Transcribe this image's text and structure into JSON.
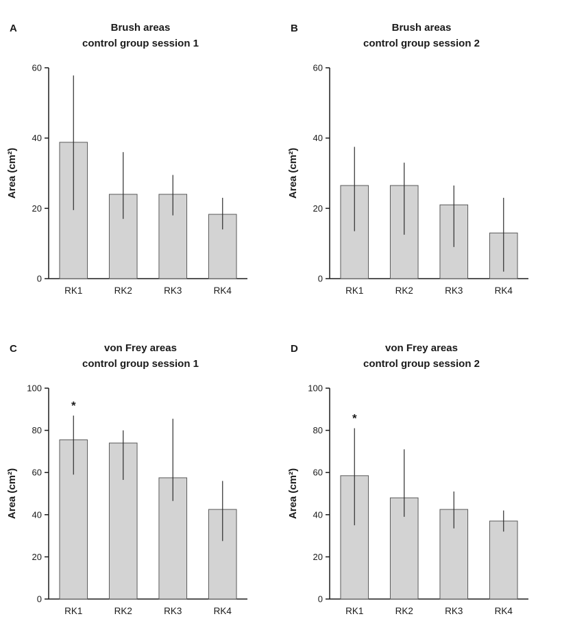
{
  "figure": {
    "background": "#ffffff",
    "bar_fill": "#d3d3d3",
    "bar_stroke": "#595959",
    "error_bar_color": "#2b2b2b",
    "axis_color": "#1a1a1a",
    "panels": [
      {
        "label": "A",
        "title_line1": "Brush areas",
        "title_line2": "control group session 1"
      },
      {
        "label": "B",
        "title_line1": "Brush areas",
        "title_line2": "control group session 2"
      },
      {
        "label": "C",
        "title_line1": "von Frey areas",
        "title_line2": "control group session 1"
      },
      {
        "label": "D",
        "title_line1": "von Frey areas",
        "title_line2": "control group session 2"
      }
    ]
  },
  "chart_data": [
    {
      "type": "bar",
      "panel": "A",
      "title": "Brush areas control group session 1",
      "categories": [
        "RK1",
        "RK2",
        "RK3",
        "RK4"
      ],
      "values": [
        38.8,
        24,
        24,
        18.3
      ],
      "error_low": [
        19.5,
        17,
        18,
        14
      ],
      "error_high": [
        57.8,
        36,
        29.5,
        23
      ],
      "xlabel": "",
      "ylabel": "Area (cm²)",
      "ylim": [
        0,
        60
      ],
      "yticks": [
        0,
        20,
        40,
        60
      ],
      "grid": false,
      "legend": "none",
      "annotations": []
    },
    {
      "type": "bar",
      "panel": "B",
      "title": "Brush areas control group session 2",
      "categories": [
        "RK1",
        "RK2",
        "RK3",
        "RK4"
      ],
      "values": [
        26.5,
        26.5,
        21,
        13
      ],
      "error_low": [
        13.5,
        12.5,
        9,
        2
      ],
      "error_high": [
        37.5,
        33,
        26.5,
        23
      ],
      "xlabel": "",
      "ylabel": "Area (cm²)",
      "ylim": [
        0,
        60
      ],
      "yticks": [
        0,
        20,
        40,
        60
      ],
      "grid": false,
      "legend": "none",
      "annotations": []
    },
    {
      "type": "bar",
      "panel": "C",
      "title": "von Frey areas control group session 1",
      "categories": [
        "RK1",
        "RK2",
        "RK3",
        "RK4"
      ],
      "values": [
        75.5,
        74,
        57.5,
        42.5
      ],
      "error_low": [
        59,
        56.5,
        46.5,
        27.5
      ],
      "error_high": [
        87,
        80,
        85.5,
        56
      ],
      "xlabel": "",
      "ylabel": "Area (cm²)",
      "ylim": [
        0,
        100
      ],
      "yticks": [
        0,
        20,
        40,
        60,
        80,
        100
      ],
      "grid": false,
      "legend": "none",
      "annotations": [
        {
          "category": "RK1",
          "text": "*"
        }
      ]
    },
    {
      "type": "bar",
      "panel": "D",
      "title": "von Frey areas control group session 2",
      "categories": [
        "RK1",
        "RK2",
        "RK3",
        "RK4"
      ],
      "values": [
        58.5,
        48,
        42.5,
        37
      ],
      "error_low": [
        35,
        39,
        33.5,
        32
      ],
      "error_high": [
        81,
        71,
        51,
        42
      ],
      "xlabel": "",
      "ylabel": "Area (cm²)",
      "ylim": [
        0,
        100
      ],
      "yticks": [
        0,
        20,
        40,
        60,
        80,
        100
      ],
      "grid": false,
      "legend": "none",
      "annotations": [
        {
          "category": "RK1",
          "text": "*"
        }
      ]
    }
  ]
}
